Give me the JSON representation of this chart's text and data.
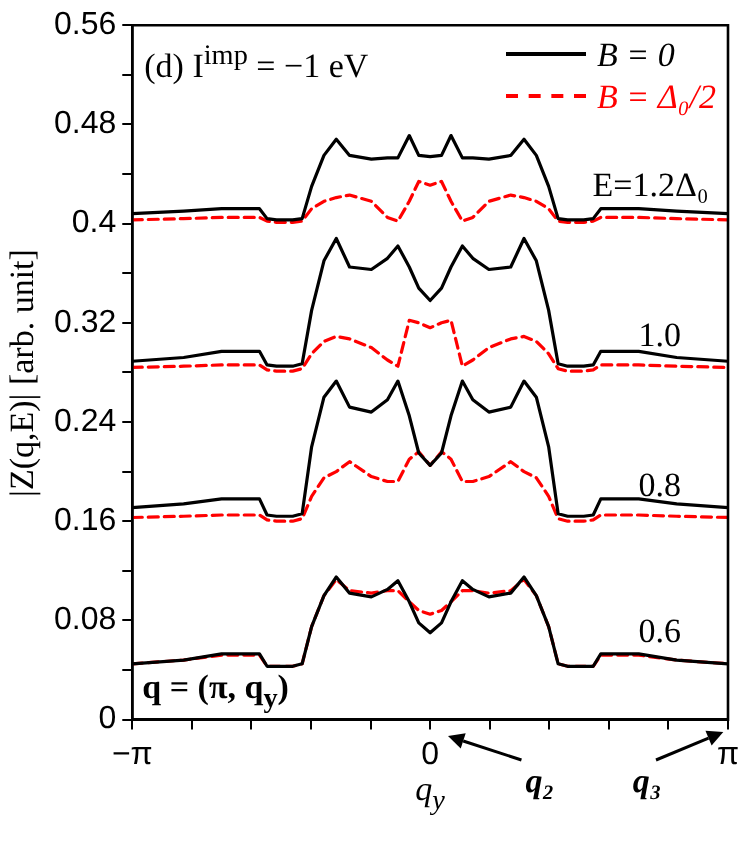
{
  "chart_data": {
    "type": "line",
    "ylabel": "|Z(q,E)| [arb. unit]",
    "xlabel": "q$_{y}$",
    "x": [
      -3.1416,
      -2.6,
      -2.2,
      -1.8,
      -1.72,
      -1.62,
      -1.45,
      -1.35,
      -1.25,
      -1.12,
      -0.99,
      -0.85,
      -0.62,
      -0.45,
      -0.34,
      -0.22,
      -0.12,
      0,
      0.12,
      0.22,
      0.34,
      0.45,
      0.62,
      0.85,
      0.99,
      1.12,
      1.25,
      1.35,
      1.45,
      1.62,
      1.72,
      1.8,
      2.2,
      2.6,
      3.1416
    ],
    "series": [
      {
        "name": "B = 0",
        "color": "#000000",
        "line_style": "solid",
        "values": [
          0.408,
          0.41,
          0.412,
          0.412,
          0.404,
          0.403,
          0.403,
          0.404,
          0.43,
          0.455,
          0.468,
          0.455,
          0.452,
          0.453,
          0.453,
          0.471,
          0.455,
          0.454,
          0.455,
          0.471,
          0.453,
          0.453,
          0.452,
          0.455,
          0.468,
          0.455,
          0.43,
          0.404,
          0.403,
          0.403,
          0.404,
          0.412,
          0.412,
          0.41,
          0.408
        ]
      },
      {
        "name": "B = Δ₀/2",
        "color": "#ff0000",
        "line_style": "dashed",
        "values": [
          0.403,
          0.404,
          0.405,
          0.405,
          0.402,
          0.401,
          0.401,
          0.402,
          0.412,
          0.418,
          0.421,
          0.423,
          0.418,
          0.405,
          0.402,
          0.418,
          0.434,
          0.431,
          0.434,
          0.418,
          0.402,
          0.405,
          0.418,
          0.423,
          0.421,
          0.418,
          0.412,
          0.402,
          0.401,
          0.401,
          0.402,
          0.405,
          0.405,
          0.404,
          0.403
        ]
      },
      {
        "color": "#000000",
        "line_style": "solid",
        "values": [
          0.289,
          0.292,
          0.297,
          0.297,
          0.286,
          0.285,
          0.285,
          0.287,
          0.33,
          0.37,
          0.388,
          0.365,
          0.363,
          0.372,
          0.382,
          0.365,
          0.348,
          0.338,
          0.348,
          0.365,
          0.382,
          0.372,
          0.363,
          0.365,
          0.388,
          0.37,
          0.33,
          0.287,
          0.285,
          0.285,
          0.286,
          0.297,
          0.297,
          0.292,
          0.289
        ]
      },
      {
        "color": "#ff0000",
        "line_style": "dashed",
        "values": [
          0.284,
          0.285,
          0.286,
          0.286,
          0.282,
          0.281,
          0.281,
          0.283,
          0.295,
          0.305,
          0.309,
          0.307,
          0.3,
          0.29,
          0.285,
          0.322,
          0.32,
          0.316,
          0.32,
          0.322,
          0.285,
          0.29,
          0.3,
          0.307,
          0.309,
          0.305,
          0.295,
          0.283,
          0.281,
          0.281,
          0.282,
          0.286,
          0.286,
          0.285,
          0.284
        ]
      },
      {
        "color": "#000000",
        "line_style": "solid",
        "values": [
          0.171,
          0.174,
          0.178,
          0.178,
          0.165,
          0.164,
          0.164,
          0.166,
          0.22,
          0.26,
          0.273,
          0.252,
          0.248,
          0.258,
          0.273,
          0.245,
          0.215,
          0.205,
          0.215,
          0.245,
          0.273,
          0.258,
          0.248,
          0.252,
          0.273,
          0.26,
          0.22,
          0.166,
          0.164,
          0.164,
          0.165,
          0.178,
          0.178,
          0.174,
          0.171
        ]
      },
      {
        "color": "#ff0000",
        "line_style": "dashed",
        "values": [
          0.163,
          0.164,
          0.165,
          0.165,
          0.161,
          0.16,
          0.16,
          0.162,
          0.18,
          0.195,
          0.2,
          0.208,
          0.196,
          0.192,
          0.192,
          0.21,
          0.216,
          0.205,
          0.216,
          0.21,
          0.192,
          0.192,
          0.196,
          0.208,
          0.2,
          0.195,
          0.18,
          0.162,
          0.16,
          0.16,
          0.161,
          0.165,
          0.165,
          0.164,
          0.163
        ]
      },
      {
        "color": "#000000",
        "line_style": "solid",
        "values": [
          0.045,
          0.048,
          0.053,
          0.053,
          0.043,
          0.043,
          0.043,
          0.045,
          0.075,
          0.1,
          0.115,
          0.102,
          0.099,
          0.105,
          0.112,
          0.095,
          0.078,
          0.07,
          0.078,
          0.095,
          0.112,
          0.105,
          0.099,
          0.102,
          0.115,
          0.1,
          0.075,
          0.045,
          0.043,
          0.043,
          0.043,
          0.053,
          0.053,
          0.048,
          0.045
        ]
      },
      {
        "color": "#ff0000",
        "line_style": "dashed",
        "values": [
          0.045,
          0.048,
          0.052,
          0.052,
          0.043,
          0.043,
          0.043,
          0.045,
          0.075,
          0.1,
          0.113,
          0.104,
          0.102,
          0.104,
          0.104,
          0.095,
          0.088,
          0.085,
          0.088,
          0.095,
          0.104,
          0.104,
          0.102,
          0.104,
          0.113,
          0.1,
          0.075,
          0.045,
          0.043,
          0.043,
          0.043,
          0.052,
          0.052,
          0.048,
          0.045
        ]
      }
    ],
    "xlim": [
      -3.1416,
      3.1416
    ],
    "xticks": [
      {
        "value": -3.1416,
        "label": "−π"
      },
      {
        "value": -2.5133,
        "label": null
      },
      {
        "value": -1.885,
        "label": null
      },
      {
        "value": -1.2566,
        "label": null
      },
      {
        "value": -0.6283,
        "label": null
      },
      0,
      {
        "value": 0.6283,
        "label": null
      },
      {
        "value": 1.2566,
        "label": null
      },
      {
        "value": 1.885,
        "label": null
      },
      {
        "value": 2.5133,
        "label": null
      },
      {
        "value": 3.1416,
        "label": "π"
      }
    ],
    "ylim": [
      0,
      0.56
    ],
    "yticks": [
      0,
      {
        "value": 0.04,
        "label": null
      },
      0.08,
      {
        "value": 0.12,
        "label": null
      },
      0.16,
      {
        "value": 0.2,
        "label": null
      },
      0.24,
      {
        "value": 0.28,
        "label": null
      },
      0.32,
      {
        "value": 0.36,
        "label": null
      },
      0.4,
      {
        "value": 0.44,
        "label": null
      },
      0.48,
      {
        "value": 0.52,
        "label": null
      },
      0.56
    ],
    "annotations": [
      "(d) I$^{imp}$ = −1 eV",
      "E=1.2Δ₀",
      "1.0",
      "0.8",
      "0.6",
      "q = (π, q$_{y}$)",
      "q₂",
      "q₃"
    ],
    "grid": false,
    "legend": "top right",
    "marker": "none"
  }
}
